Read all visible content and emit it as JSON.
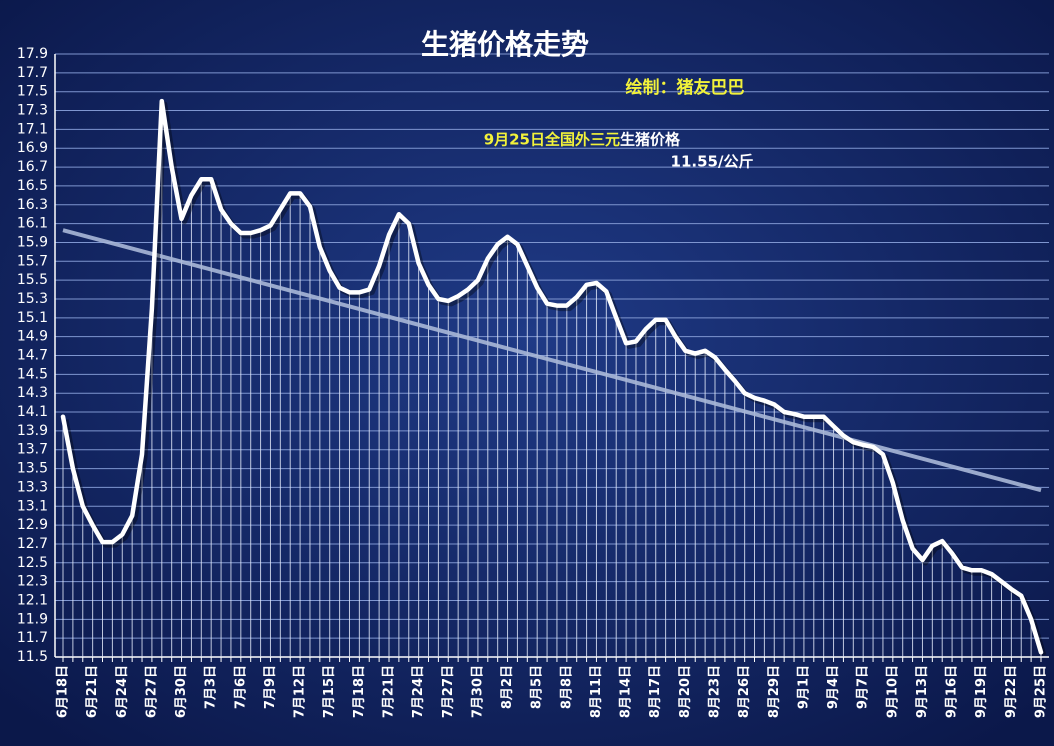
{
  "chart_data": {
    "type": "line",
    "title": "生猪价格走势",
    "credit": "绘制：猪友巴巴",
    "annotation_date": "9月25日全国外三元",
    "annotation_label": "生猪价格",
    "annotation_price": "11.55/公斤",
    "categories": [
      "6月18日",
      null,
      null,
      "6月21日",
      null,
      null,
      "6月24日",
      null,
      null,
      "6月27日",
      null,
      null,
      "6月30日",
      null,
      null,
      "7月3日",
      null,
      null,
      "7月6日",
      null,
      null,
      "7月9日",
      null,
      null,
      "7月12日",
      null,
      null,
      "7月15日",
      null,
      null,
      "7月18日",
      null,
      null,
      "7月21日",
      null,
      null,
      "7月24日",
      null,
      null,
      "7月27日",
      null,
      null,
      "7月30日",
      null,
      null,
      "8月2日",
      null,
      null,
      "8月5日",
      null,
      null,
      "8月8日",
      null,
      null,
      "8月11日",
      null,
      null,
      "8月14日",
      null,
      null,
      "8月17日",
      null,
      null,
      "8月20日",
      null,
      null,
      "8月23日",
      null,
      null,
      "8月26日",
      null,
      null,
      "8月29日",
      null,
      null,
      "9月1日",
      null,
      null,
      "9月4日",
      null,
      null,
      "9月7日",
      null,
      null,
      "9月10日",
      null,
      null,
      "9月13日",
      null,
      null,
      "9月16日",
      null,
      null,
      "9月19日",
      null,
      null,
      "9月22日",
      null,
      null,
      "9月25日"
    ],
    "values": [
      14.05,
      13.5,
      13.1,
      12.9,
      12.72,
      12.72,
      12.8,
      13.0,
      13.65,
      15.2,
      17.4,
      16.7,
      16.15,
      16.4,
      16.57,
      16.57,
      16.25,
      16.1,
      16.0,
      16.0,
      16.03,
      16.08,
      16.25,
      16.42,
      16.42,
      16.28,
      15.85,
      15.6,
      15.42,
      15.37,
      15.37,
      15.4,
      15.65,
      15.98,
      16.2,
      16.1,
      15.68,
      15.45,
      15.3,
      15.28,
      15.33,
      15.4,
      15.5,
      15.73,
      15.88,
      15.96,
      15.88,
      15.65,
      15.42,
      15.25,
      15.23,
      15.23,
      15.32,
      15.45,
      15.47,
      15.38,
      15.1,
      14.83,
      14.85,
      14.98,
      15.08,
      15.08,
      14.9,
      14.75,
      14.72,
      14.75,
      14.68,
      14.55,
      14.43,
      14.3,
      14.25,
      14.22,
      14.18,
      14.1,
      14.08,
      14.05,
      14.05,
      14.05,
      13.95,
      13.85,
      13.78,
      13.75,
      13.73,
      13.65,
      13.35,
      12.95,
      12.65,
      12.53,
      12.68,
      12.73,
      12.6,
      12.45,
      12.42,
      12.42,
      12.38,
      12.3,
      12.22,
      12.15,
      11.9,
      11.55
    ],
    "color": "#ffffff",
    "trend": {
      "values": [
        16.03,
        13.27
      ],
      "color": "#a9b8d8"
    },
    "ylim": [
      11.5,
      17.9
    ],
    "yticks": [
      11.5,
      11.7,
      11.9,
      12.1,
      12.3,
      12.5,
      12.7,
      12.9,
      13.1,
      13.3,
      13.5,
      13.7,
      13.9,
      14.1,
      14.3,
      14.5,
      14.7,
      14.9,
      15.1,
      15.3,
      15.5,
      15.7,
      15.9,
      16.1,
      16.3,
      16.5,
      16.7,
      16.9,
      17.1,
      17.3,
      17.5,
      17.7,
      17.9
    ],
    "grid": true
  }
}
